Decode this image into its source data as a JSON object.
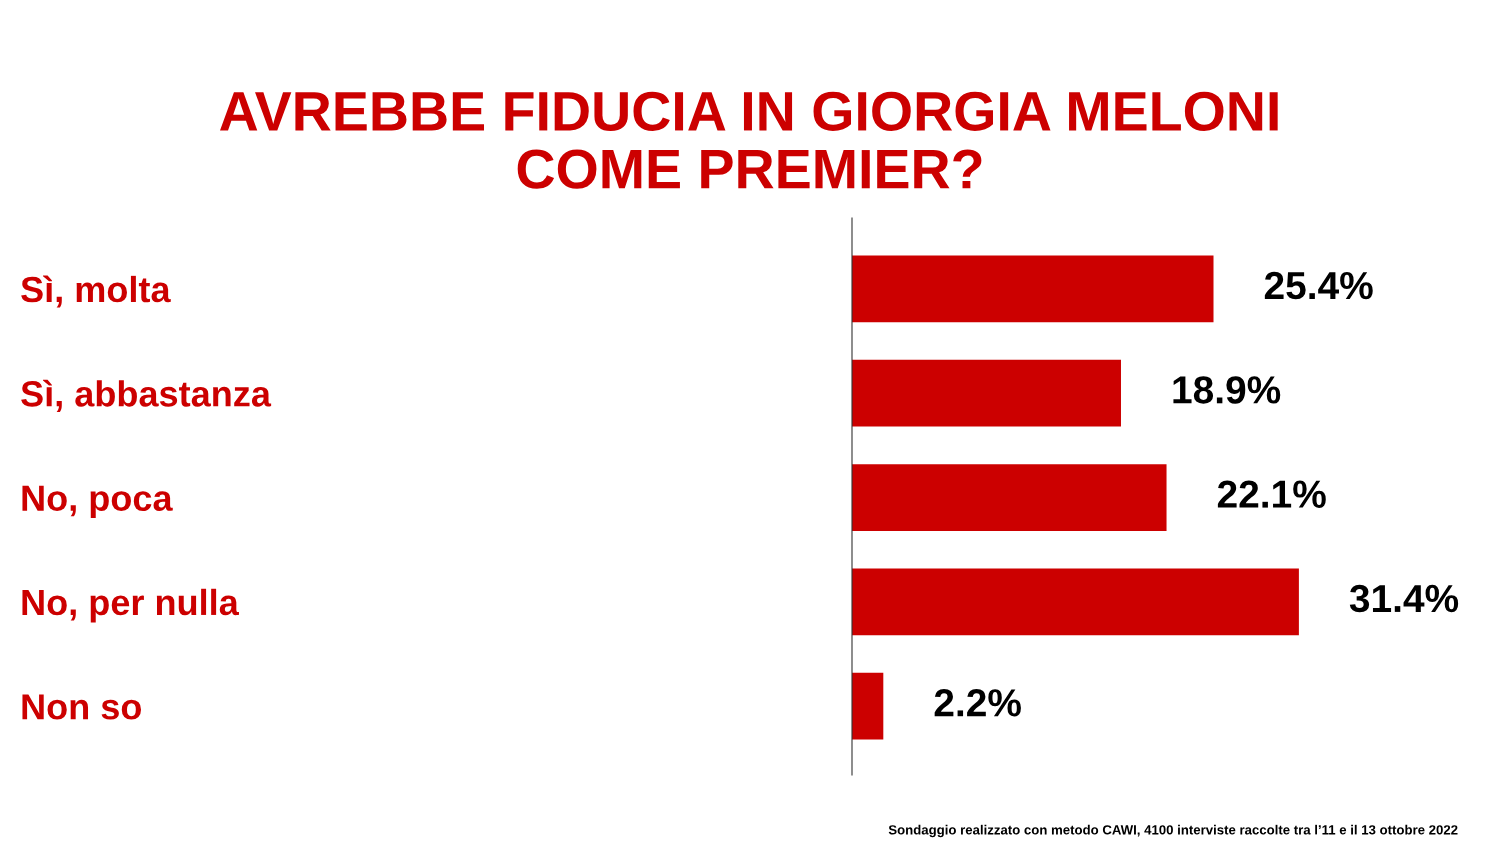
{
  "chart_data": {
    "type": "bar",
    "orientation": "horizontal",
    "title": "AVREBBE FIDUCIA IN GIORGIA MELONI\nCOME PREMIER?",
    "categories": [
      "Sì, molta",
      "Sì, abbastanza",
      "No, poca",
      "No, per nulla",
      "Non so"
    ],
    "values": [
      25.4,
      18.9,
      22.1,
      31.4,
      2.2
    ],
    "value_labels": [
      "25.4%",
      "18.9%",
      "22.1%",
      "31.4%",
      "2.2%"
    ],
    "color": "#cc0000",
    "tick_labels": "y",
    "grid": false,
    "legend": false,
    "annotations": [
      "Sondaggio realizzato con metodo CAWI, 4100 interviste raccolte tra l’11 e il 13 ottobre 2022"
    ]
  }
}
